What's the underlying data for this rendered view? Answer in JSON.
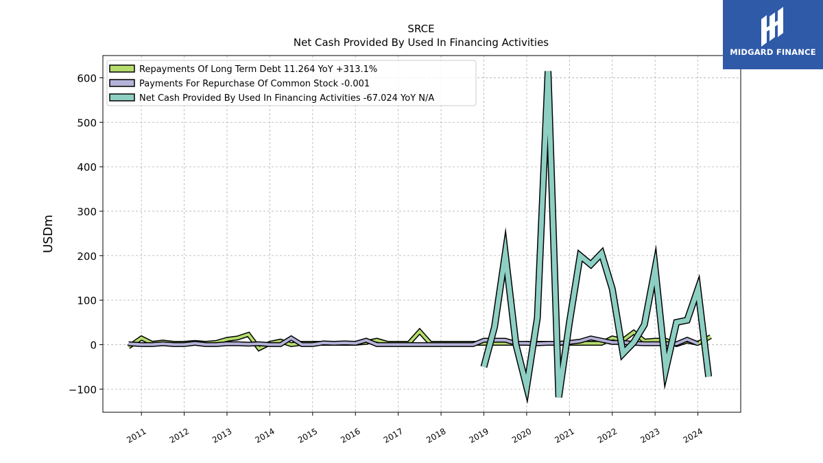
{
  "logo": {
    "name": "MIDGARD FINANCE"
  },
  "chart_data": {
    "type": "line",
    "title": "SRCE",
    "subtitle": "Net Cash Provided By Used In Financing Activities",
    "xlabel": "",
    "ylabel": "USDm",
    "xlim": [
      2010.1,
      2025.0
    ],
    "ylim": [
      -152,
      650
    ],
    "yticks": [
      -100,
      0,
      100,
      200,
      300,
      400,
      500,
      600
    ],
    "ytick_labels": [
      "−100",
      "0",
      "100",
      "200",
      "300",
      "400",
      "500",
      "600"
    ],
    "xticks": [
      2011,
      2012,
      2013,
      2014,
      2015,
      2016,
      2017,
      2018,
      2019,
      2020,
      2021,
      2022,
      2023,
      2024
    ],
    "xtick_labels": [
      "2011",
      "2012",
      "2013",
      "2014",
      "2015",
      "2016",
      "2017",
      "2018",
      "2019",
      "2020",
      "2021",
      "2022",
      "2023",
      "2024"
    ],
    "grid": true,
    "legend_position": "top-left",
    "series": [
      {
        "name": "Repayments Of Long Term Debt",
        "legend_label": "Repayments Of Long Term Debt  11.264 YoY +313.1%",
        "color": "#b5dd6e",
        "linewidth": 4,
        "x": [
          2010.7,
          2011.0,
          2011.25,
          2011.5,
          2011.75,
          2012.0,
          2012.25,
          2012.5,
          2012.75,
          2013.0,
          2013.25,
          2013.5,
          2013.75,
          2014.0,
          2014.25,
          2014.5,
          2014.75,
          2015.0,
          2015.25,
          2015.5,
          2015.75,
          2016.0,
          2016.25,
          2016.5,
          2016.75,
          2017.0,
          2017.25,
          2017.5,
          2017.75,
          2018.0,
          2018.25,
          2018.5,
          2018.75,
          2019.0,
          2019.25,
          2019.5,
          2019.75,
          2020.0,
          2020.25,
          2020.5,
          2020.75,
          2021.0,
          2021.25,
          2021.5,
          2021.75,
          2022.0,
          2022.25,
          2022.5,
          2022.75,
          2023.0,
          2023.25,
          2023.5,
          2023.75,
          2024.0,
          2024.3
        ],
        "values": [
          -5,
          15,
          3,
          6,
          3,
          3,
          5,
          3,
          5,
          12,
          15,
          23,
          -9,
          3,
          8,
          0,
          3,
          3,
          3,
          3,
          3,
          3,
          5,
          10,
          3,
          3,
          3,
          30,
          3,
          3,
          3,
          3,
          3,
          3,
          3,
          3,
          3,
          3,
          3,
          3,
          3,
          3,
          3,
          3,
          3,
          15,
          10,
          28,
          8,
          10,
          10,
          0,
          8,
          3,
          18
        ]
      },
      {
        "name": "Payments For Repurchase Of Common Stock",
        "legend_label": "Payments For Repurchase Of Common Stock  -0.001",
        "color": "#b4b2d8",
        "linewidth": 4,
        "x": [
          2010.7,
          2011.0,
          2011.25,
          2011.5,
          2011.75,
          2012.0,
          2012.25,
          2012.5,
          2012.75,
          2013.0,
          2013.25,
          2013.5,
          2013.75,
          2014.0,
          2014.25,
          2014.5,
          2014.75,
          2015.0,
          2015.25,
          2015.5,
          2015.75,
          2016.0,
          2016.25,
          2016.5,
          2016.75,
          2017.0,
          2017.25,
          2017.5,
          2017.75,
          2018.0,
          2018.25,
          2018.5,
          2018.75,
          2019.0,
          2019.25,
          2019.5,
          2019.75,
          2020.0,
          2020.25,
          2020.5,
          2020.75,
          2021.0,
          2021.25,
          2021.5,
          2021.75,
          2022.0,
          2022.25,
          2022.5,
          2022.75,
          2023.0,
          2023.25,
          2023.5,
          2023.75,
          2024.0
        ],
        "values": [
          2,
          0,
          0,
          2,
          0,
          0,
          3,
          0,
          0,
          2,
          2,
          1,
          2,
          0,
          0,
          15,
          0,
          0,
          4,
          3,
          4,
          3,
          10,
          0,
          0,
          0,
          0,
          0,
          0,
          0,
          0,
          0,
          0,
          10,
          10,
          10,
          3,
          3,
          2,
          3,
          3,
          5,
          8,
          15,
          10,
          5,
          5,
          3,
          2,
          2,
          2,
          2,
          12,
          2
        ]
      },
      {
        "name": "Net Cash Provided By Used In Financing Activities",
        "legend_label": "Net Cash Provided By Used In Financing Activities  -67.024 YoY N/A",
        "color": "#8ecfc3",
        "linewidth": 7,
        "x": [
          2019.0,
          2019.25,
          2019.5,
          2019.75,
          2020.0,
          2020.25,
          2020.5,
          2020.75,
          2021.0,
          2021.25,
          2021.5,
          2021.75,
          2022.0,
          2022.25,
          2022.5,
          2022.75,
          2023.0,
          2023.25,
          2023.5,
          2023.75,
          2024.0,
          2024.25
        ],
        "values": [
          -50,
          40,
          205,
          0,
          -95,
          60,
          615,
          -118,
          50,
          200,
          180,
          205,
          125,
          -20,
          5,
          45,
          172,
          -55,
          50,
          55,
          125,
          -72
        ]
      }
    ]
  }
}
